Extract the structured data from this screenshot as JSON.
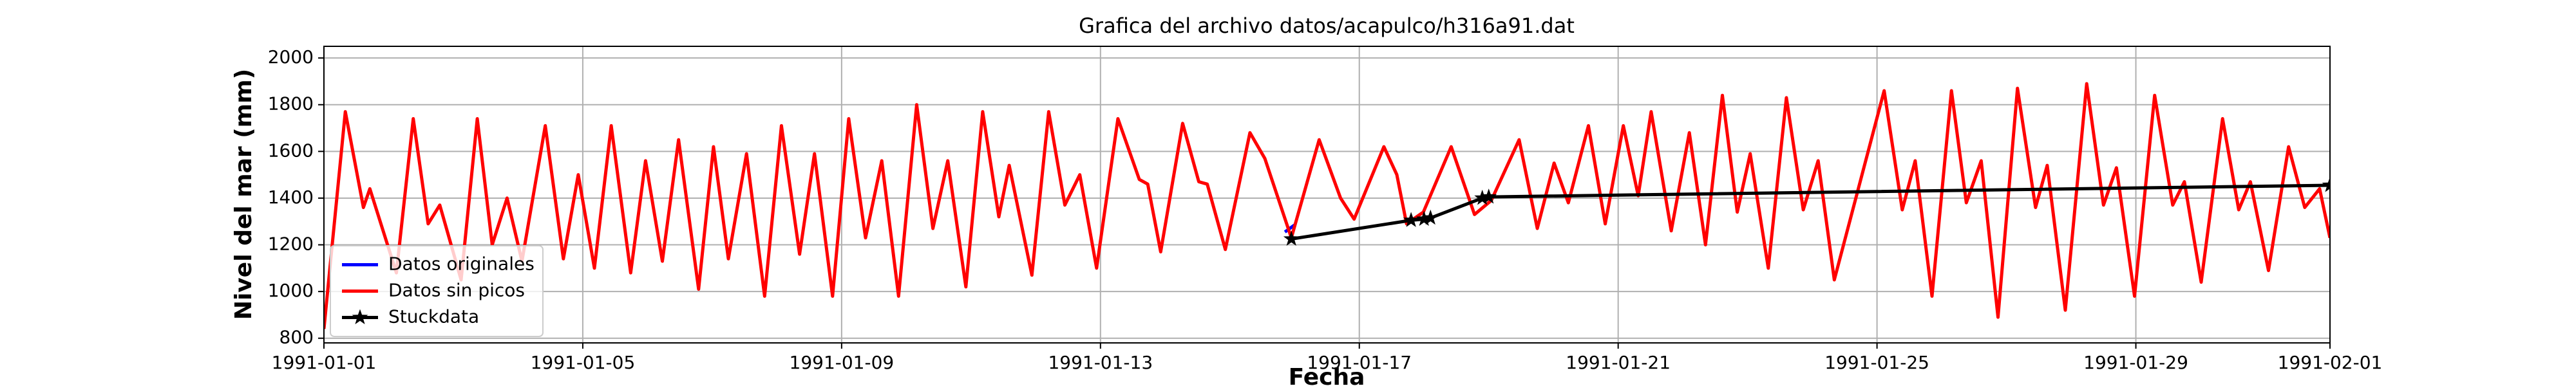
{
  "chart_data": {
    "type": "line",
    "title": "Grafica del archivo datos/acapulco/h316a91.dat",
    "y_label": "Nivel del mar (mm)",
    "x_label": "Fecha",
    "xlim": [
      0,
      31
    ],
    "xticks": [
      {
        "value": 0,
        "label": "1991-01-01"
      },
      {
        "value": 4,
        "label": "1991-01-05"
      },
      {
        "value": 8,
        "label": "1991-01-09"
      },
      {
        "value": 12,
        "label": "1991-01-13"
      },
      {
        "value": 16,
        "label": "1991-01-17"
      },
      {
        "value": 20,
        "label": "1991-01-21"
      },
      {
        "value": 24,
        "label": "1991-01-25"
      },
      {
        "value": 28,
        "label": "1991-01-29"
      },
      {
        "value": 31,
        "label": "1991-02-01"
      }
    ],
    "ylim": [
      780,
      2050
    ],
    "yticks": [
      800,
      1000,
      1200,
      1400,
      1600,
      1800,
      2000
    ],
    "grid": true,
    "legend": "lower left",
    "series": [
      {
        "name": "Datos originales",
        "color": "#0000ff",
        "marker": null,
        "x": [
          14.85,
          14.95,
          15.0
        ],
        "values": [
          1255,
          1275,
          1285
        ]
      },
      {
        "name": "Datos sin picos",
        "color": "#ff0000",
        "marker": null,
        "x": [
          0,
          0.33,
          0.61,
          0.71,
          1.12,
          1.38,
          1.61,
          1.79,
          2.12,
          2.37,
          2.6,
          2.83,
          3.06,
          3.42,
          3.7,
          3.93,
          4.18,
          4.44,
          4.74,
          4.97,
          5.23,
          5.48,
          5.79,
          6.02,
          6.25,
          6.53,
          6.81,
          7.07,
          7.35,
          7.58,
          7.86,
          8.11,
          8.37,
          8.62,
          8.88,
          9.16,
          9.41,
          9.64,
          9.92,
          10.18,
          10.43,
          10.59,
          10.94,
          11.2,
          11.45,
          11.68,
          11.94,
          12.27,
          12.6,
          12.73,
          12.93,
          13.27,
          13.52,
          13.65,
          13.93,
          14.31,
          14.54,
          14.95,
          15.38,
          15.71,
          15.92,
          16.38,
          16.58,
          16.73,
          16.99,
          17.42,
          17.78,
          18.04,
          18.47,
          18.75,
          19.01,
          19.23,
          19.54,
          19.8,
          20.08,
          20.31,
          20.51,
          20.82,
          21.1,
          21.35,
          21.61,
          21.84,
          22.04,
          22.32,
          22.6,
          22.86,
          23.09,
          23.34,
          24.11,
          24.39,
          24.59,
          24.85,
          25.15,
          25.38,
          25.61,
          25.87,
          26.17,
          26.45,
          26.63,
          26.91,
          27.24,
          27.5,
          27.7,
          27.98,
          28.29,
          28.57,
          28.75,
          29.01,
          29.34,
          29.59,
          29.77,
          30.05,
          30.36,
          30.61,
          30.84,
          31.0
        ],
        "values": [
          840,
          1770,
          1360,
          1440,
          1080,
          1740,
          1290,
          1370,
          1050,
          1740,
          1200,
          1400,
          1130,
          1710,
          1140,
          1500,
          1100,
          1710,
          1080,
          1560,
          1130,
          1650,
          1010,
          1620,
          1140,
          1590,
          980,
          1710,
          1160,
          1590,
          980,
          1740,
          1230,
          1560,
          980,
          1800,
          1270,
          1560,
          1020,
          1770,
          1320,
          1540,
          1070,
          1770,
          1370,
          1500,
          1100,
          1740,
          1480,
          1460,
          1170,
          1720,
          1470,
          1460,
          1180,
          1680,
          1570,
          1230,
          1650,
          1400,
          1310,
          1620,
          1500,
          1290,
          1340,
          1620,
          1330,
          1390,
          1650,
          1270,
          1550,
          1380,
          1710,
          1290,
          1710,
          1410,
          1770,
          1260,
          1680,
          1200,
          1840,
          1340,
          1590,
          1100,
          1830,
          1350,
          1560,
          1050,
          1860,
          1350,
          1560,
          980,
          1860,
          1380,
          1560,
          890,
          1870,
          1360,
          1540,
          920,
          1890,
          1370,
          1530,
          980,
          1840,
          1370,
          1470,
          1040,
          1740,
          1350,
          1470,
          1090,
          1620,
          1360,
          1440,
          1230
        ]
      },
      {
        "name": "Stuckdata",
        "color": "#000000",
        "marker": "star",
        "x": [
          14.95,
          16.8,
          17.0,
          17.1,
          17.9,
          18.0,
          31.0
        ],
        "values": [
          1225,
          1305,
          1310,
          1315,
          1400,
          1405,
          1455
        ]
      }
    ]
  }
}
